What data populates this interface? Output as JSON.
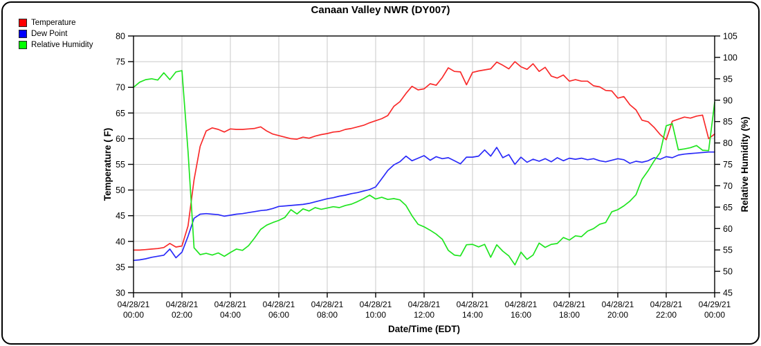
{
  "title": "Canaan Valley NWR (DY007)",
  "chart_data": {
    "type": "line",
    "title": "Canaan Valley NWR (DY007)",
    "xlabel": "Date/Time (EDT)",
    "ylabel_left": "Temperature ( F)",
    "ylabel_right": "Relative Humidity (%)",
    "ylim_left": [
      30,
      80
    ],
    "ylim_right": [
      45,
      105
    ],
    "ytick_step": 5,
    "grid": true,
    "legend_position": "top-left",
    "sample_interval_minutes": 15,
    "x_range_hours": [
      0,
      24
    ],
    "x_tick_labels": [
      {
        "date": "04/28/21",
        "time": "00:00"
      },
      {
        "date": "04/28/21",
        "time": "02:00"
      },
      {
        "date": "04/28/21",
        "time": "04:00"
      },
      {
        "date": "04/28/21",
        "time": "06:00"
      },
      {
        "date": "04/28/21",
        "time": "08:00"
      },
      {
        "date": "04/28/21",
        "time": "10:00"
      },
      {
        "date": "04/28/21",
        "time": "12:00"
      },
      {
        "date": "04/28/21",
        "time": "14:00"
      },
      {
        "date": "04/28/21",
        "time": "16:00"
      },
      {
        "date": "04/28/21",
        "time": "18:00"
      },
      {
        "date": "04/28/21",
        "time": "20:00"
      },
      {
        "date": "04/28/21",
        "time": "22:00"
      },
      {
        "date": "04/29/21",
        "time": "00:00"
      }
    ],
    "series": [
      {
        "name": "Temperature",
        "axis": "left",
        "color": "#f92a2a",
        "legend_color": "#ff0000",
        "values": [
          38.3,
          38.3,
          38.4,
          38.5,
          38.6,
          38.8,
          39.6,
          38.9,
          39.1,
          43.0,
          52.0,
          58.5,
          61.5,
          62.1,
          61.8,
          61.3,
          61.9,
          61.8,
          61.8,
          61.9,
          62.0,
          62.3,
          61.5,
          60.9,
          60.6,
          60.3,
          60.0,
          59.9,
          60.3,
          60.1,
          60.5,
          60.8,
          61.0,
          61.3,
          61.4,
          61.8,
          62.0,
          62.3,
          62.6,
          63.1,
          63.5,
          63.9,
          64.5,
          66.3,
          67.2,
          68.8,
          70.2,
          69.5,
          69.7,
          70.7,
          70.4,
          71.9,
          73.8,
          73.1,
          73.0,
          70.5,
          72.9,
          73.2,
          73.4,
          73.6,
          74.9,
          74.3,
          73.6,
          75.0,
          74.0,
          73.5,
          74.6,
          73.1,
          73.9,
          72.2,
          71.8,
          72.4,
          71.2,
          71.5,
          71.2,
          71.2,
          70.3,
          70.1,
          69.4,
          69.3,
          67.9,
          68.2,
          66.6,
          65.6,
          63.6,
          63.3,
          62.2,
          60.8,
          59.8,
          63.4,
          63.8,
          64.2,
          64.0,
          64.4,
          64.6,
          60.0,
          60.9
        ]
      },
      {
        "name": "Dew Point",
        "axis": "left",
        "color": "#2a2af9",
        "legend_color": "#0000ff",
        "values": [
          36.3,
          36.4,
          36.6,
          36.9,
          37.1,
          37.3,
          38.5,
          36.8,
          37.9,
          41.0,
          44.5,
          45.3,
          45.4,
          45.3,
          45.2,
          44.9,
          45.1,
          45.3,
          45.4,
          45.6,
          45.8,
          46.0,
          46.1,
          46.4,
          46.8,
          46.9,
          47.0,
          47.1,
          47.2,
          47.4,
          47.7,
          48.0,
          48.3,
          48.5,
          48.8,
          49.0,
          49.3,
          49.5,
          49.8,
          50.1,
          50.6,
          52.2,
          53.8,
          54.9,
          55.5,
          56.6,
          55.7,
          56.2,
          56.7,
          55.8,
          56.5,
          56.1,
          56.3,
          55.7,
          55.1,
          56.4,
          56.4,
          56.6,
          57.8,
          56.6,
          58.3,
          56.3,
          56.9,
          55.0,
          56.4,
          55.4,
          56.0,
          55.6,
          56.1,
          55.5,
          56.3,
          55.7,
          56.2,
          56.0,
          56.2,
          55.9,
          56.1,
          55.7,
          55.5,
          55.8,
          56.1,
          55.9,
          55.2,
          55.6,
          55.4,
          55.7,
          56.3,
          56.0,
          56.5,
          56.3,
          56.8,
          57.0,
          57.1,
          57.2,
          57.3,
          57.4,
          57.4
        ]
      },
      {
        "name": "Relative Humidity",
        "axis": "right",
        "color": "#1fe51f",
        "legend_color": "#00ff00",
        "values": [
          93.0,
          94.2,
          94.8,
          95.0,
          94.7,
          96.4,
          94.8,
          96.6,
          96.9,
          78.0,
          55.5,
          53.9,
          54.2,
          53.8,
          54.3,
          53.5,
          54.4,
          55.2,
          54.9,
          56.0,
          57.8,
          59.8,
          60.8,
          61.4,
          61.9,
          62.6,
          64.4,
          63.4,
          64.6,
          64.1,
          64.9,
          64.5,
          64.8,
          65.1,
          64.9,
          65.4,
          65.7,
          66.3,
          67.0,
          67.8,
          66.9,
          67.3,
          66.8,
          67.0,
          66.7,
          65.4,
          63.0,
          61.0,
          60.4,
          59.6,
          58.7,
          57.5,
          54.9,
          53.8,
          53.6,
          56.2,
          56.3,
          55.7,
          56.3,
          53.3,
          56.2,
          54.7,
          53.6,
          51.5,
          54.5,
          52.8,
          53.8,
          56.6,
          55.6,
          56.3,
          56.5,
          57.9,
          57.3,
          58.3,
          58.1,
          59.4,
          60.0,
          61.0,
          61.4,
          63.9,
          64.4,
          65.3,
          66.4,
          67.9,
          71.5,
          73.5,
          75.8,
          77.8,
          84.0,
          84.5,
          78.4,
          78.6,
          78.9,
          79.4,
          78.3,
          78.2,
          89.5
        ]
      }
    ],
    "colors": {
      "grid": "#c8c8c8",
      "frame": "#000000",
      "text": "#000000"
    }
  }
}
